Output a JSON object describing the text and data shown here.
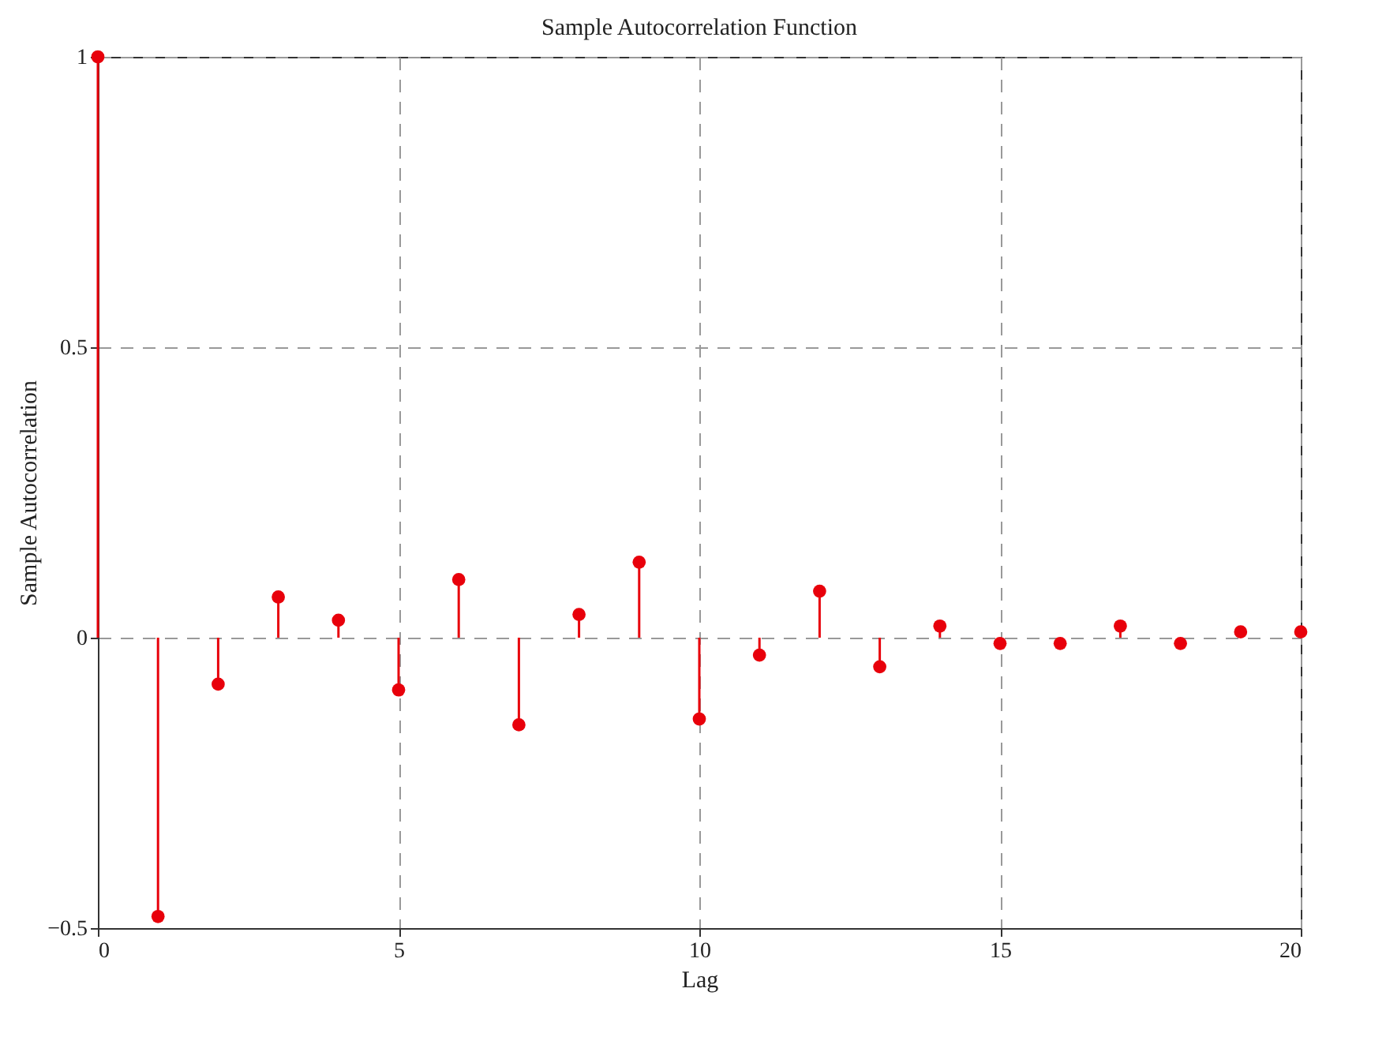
{
  "chart_data": {
    "type": "lollipop",
    "title": "Sample Autocorrelation Function",
    "xlabel": "Lag",
    "ylabel": "Sample Autocorrelation",
    "x": [
      0,
      1,
      2,
      3,
      4,
      5,
      6,
      7,
      8,
      9,
      10,
      11,
      12,
      13,
      14,
      15,
      16,
      17,
      18,
      19,
      20
    ],
    "values": [
      1,
      -0.48,
      -0.08,
      0.07,
      0.03,
      -0.09,
      0.1,
      -0.15,
      0.04,
      0.13,
      -0.14,
      -0.03,
      0.08,
      -0.05,
      0.02,
      -0.01,
      -0.01,
      0.02,
      -0.01,
      0.01,
      0.01
    ],
    "color": "#e8000b",
    "marker": "circle",
    "grid": true,
    "xlim": [
      0,
      20
    ],
    "xticks": [
      0,
      5,
      10,
      15,
      20
    ],
    "ylim": [
      -0.5,
      1
    ],
    "yticks": [
      -0.5,
      0,
      0.5,
      1
    ]
  }
}
